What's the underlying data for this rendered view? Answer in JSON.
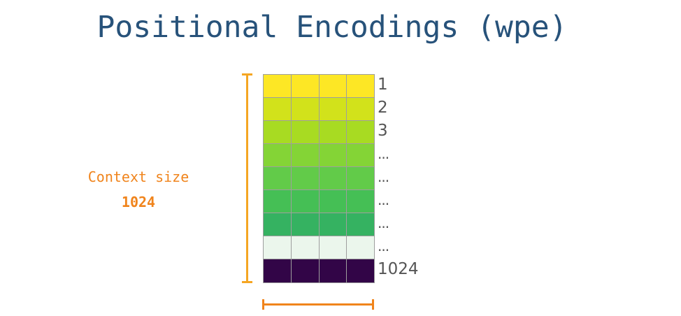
{
  "title": "Positional Encodings (wpe)",
  "context": {
    "label": "Context size",
    "value": "1024"
  },
  "matrix": {
    "columns": 4,
    "rows": [
      {
        "label": "1",
        "color": "#fde725"
      },
      {
        "label": "2",
        "color": "#d2e21b"
      },
      {
        "label": "3",
        "color": "#a8db22"
      },
      {
        "label": "...",
        "color": "#84d436"
      },
      {
        "label": "...",
        "color": "#62cb49"
      },
      {
        "label": "...",
        "color": "#45bf55"
      },
      {
        "label": "...",
        "color": "#35b261"
      },
      {
        "label": "...",
        "color": "#ebf6ec"
      },
      {
        "label": "1024",
        "color": "#320547"
      }
    ]
  },
  "colors": {
    "title": "#27527a",
    "bracket_vertical": "#f5a623",
    "bracket_horizontal": "#f0841c",
    "context_text": "#f0841c"
  }
}
